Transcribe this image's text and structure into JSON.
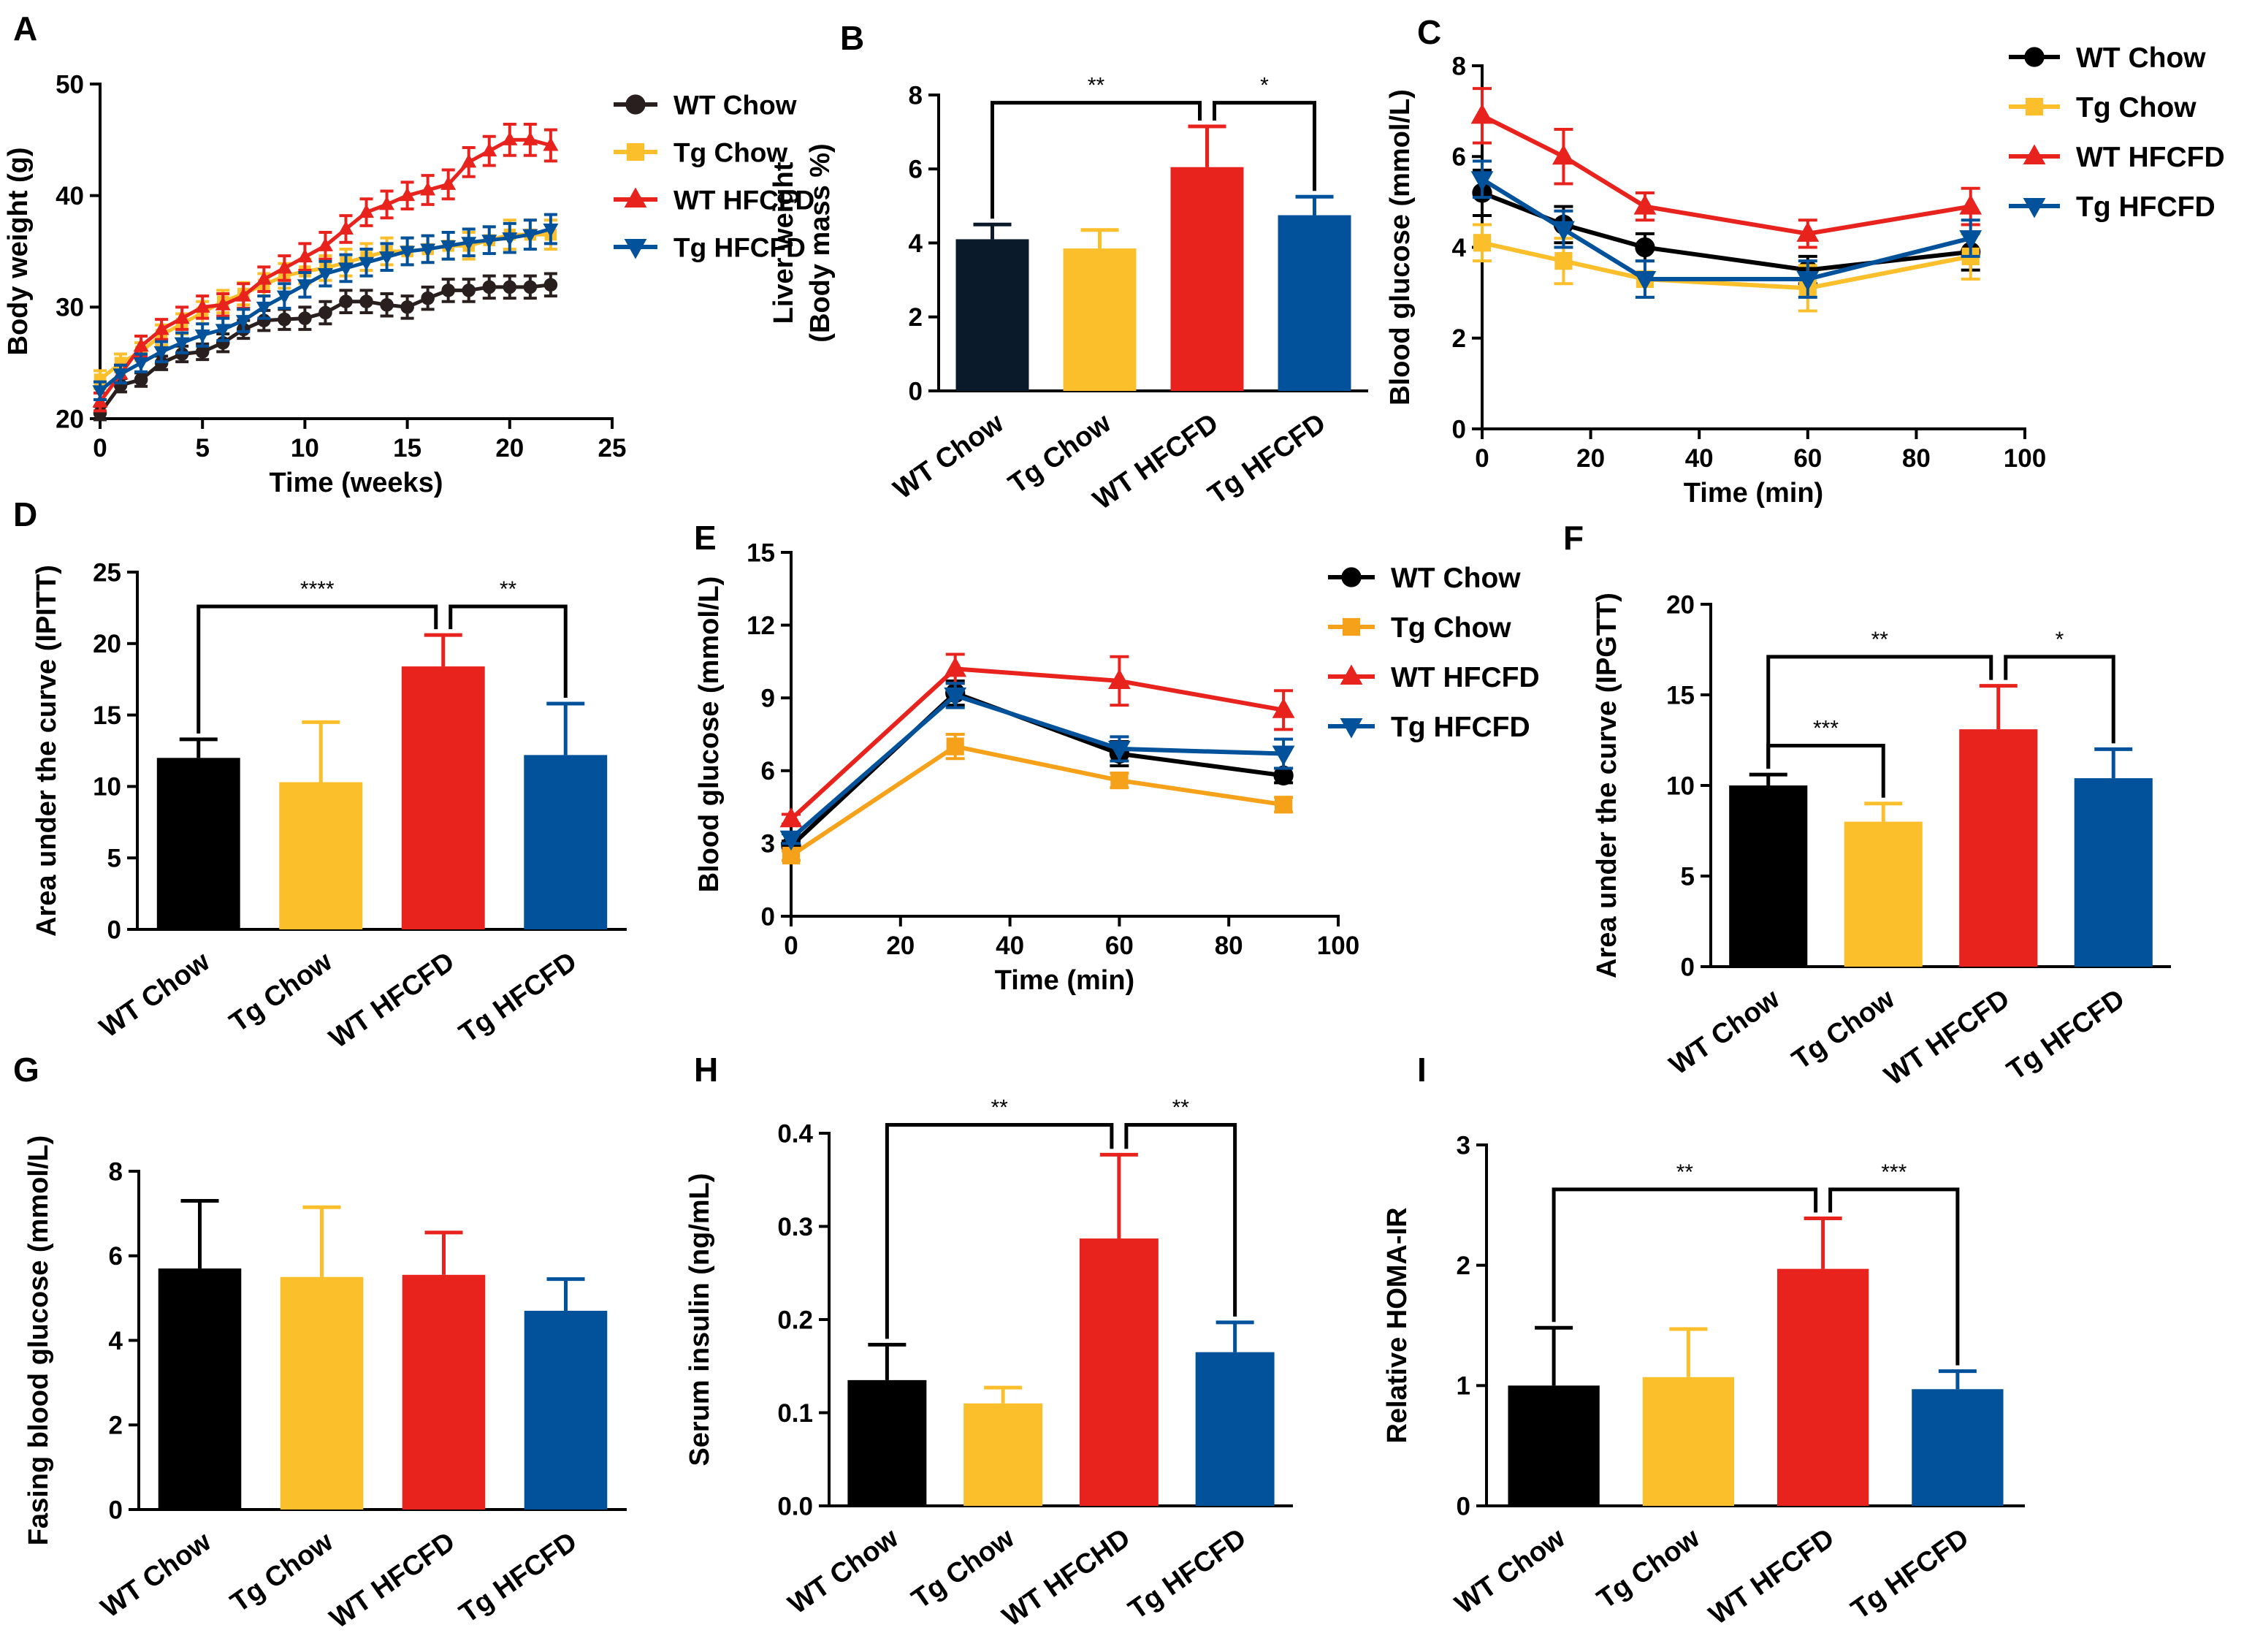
{
  "colors": {
    "wt_chow": "#000000",
    "wt_chow_bar": "#0b1a2a",
    "tg_chow": "#fbbf2c",
    "wt_hfcfd": "#e8231d",
    "tg_hfcfd": "#02519b"
  },
  "chart_data": [
    {
      "panel": "A",
      "type": "line",
      "xlabel": "Time (weeks)",
      "ylabel": "Body weight (g)",
      "xlim": [
        0,
        25
      ],
      "ylim": [
        20,
        50
      ],
      "xticks": [
        0,
        5,
        10,
        15,
        20,
        25
      ],
      "yticks": [
        20,
        30,
        40,
        50
      ],
      "xtick_labels": [
        "0",
        "5",
        "10",
        "15",
        "20",
        "25"
      ],
      "ytick_labels": [
        "20",
        "30",
        "40",
        "50"
      ],
      "x": [
        0,
        1,
        2,
        3,
        4,
        5,
        6,
        7,
        8,
        9,
        10,
        11,
        12,
        13,
        14,
        15,
        16,
        17,
        18,
        19,
        20,
        21,
        22
      ],
      "series": [
        {
          "name": "WT Chow",
          "color": "#2a1f1f",
          "marker": "circle",
          "values": [
            20.5,
            23.0,
            23.5,
            25.0,
            25.8,
            26.0,
            26.8,
            28.0,
            28.8,
            28.9,
            29.0,
            29.5,
            30.5,
            30.5,
            30.2,
            30.0,
            30.8,
            31.5,
            31.5,
            31.8,
            31.8,
            31.8,
            32.0
          ],
          "errors": [
            0.6,
            0.6,
            0.6,
            0.6,
            0.7,
            0.7,
            0.8,
            0.8,
            0.9,
            0.9,
            1.0,
            1.0,
            1.0,
            1.0,
            1.0,
            1.0,
            1.0,
            1.0,
            1.0,
            1.0,
            1.0,
            1.0,
            1.0
          ]
        },
        {
          "name": "Tg Chow",
          "color": "#fbbf2c",
          "marker": "square",
          "values": [
            23.5,
            25.0,
            26.0,
            27.5,
            28.5,
            29.5,
            30.5,
            31.2,
            32.0,
            32.8,
            33.2,
            33.5,
            34.0,
            34.5,
            35.0,
            35.0,
            35.2,
            35.5,
            35.5,
            36.0,
            36.5,
            36.5,
            36.5
          ],
          "errors": [
            0.8,
            0.8,
            0.8,
            0.9,
            0.9,
            1.0,
            1.0,
            1.0,
            1.0,
            1.1,
            1.1,
            1.1,
            1.2,
            1.2,
            1.2,
            1.2,
            1.2,
            1.2,
            1.2,
            1.2,
            1.3,
            1.3,
            1.3
          ]
        },
        {
          "name": "WT HFCFD",
          "color": "#e8231d",
          "marker": "triangle-up",
          "values": [
            21.5,
            24.0,
            26.5,
            28.0,
            29.0,
            30.0,
            30.2,
            31.0,
            32.5,
            33.5,
            34.5,
            35.5,
            37.0,
            38.5,
            39.2,
            40.0,
            40.5,
            41.0,
            43.0,
            44.0,
            45.0,
            45.0,
            44.5
          ],
          "errors": [
            0.8,
            0.8,
            0.9,
            0.9,
            1.0,
            1.0,
            1.0,
            1.1,
            1.1,
            1.1,
            1.2,
            1.2,
            1.2,
            1.2,
            1.2,
            1.2,
            1.3,
            1.3,
            1.3,
            1.3,
            1.4,
            1.4,
            1.4
          ]
        },
        {
          "name": "Tg HFCFD",
          "color": "#02519b",
          "marker": "triangle-down",
          "values": [
            22.5,
            24.0,
            25.0,
            26.0,
            26.8,
            27.5,
            28.0,
            28.8,
            30.0,
            31.0,
            32.0,
            33.0,
            33.5,
            34.0,
            34.5,
            35.0,
            35.2,
            35.5,
            35.8,
            36.0,
            36.2,
            36.5,
            37.0
          ],
          "errors": [
            0.8,
            0.8,
            0.8,
            0.9,
            0.9,
            1.0,
            1.0,
            1.0,
            1.0,
            1.1,
            1.1,
            1.1,
            1.2,
            1.2,
            1.2,
            1.2,
            1.2,
            1.2,
            1.2,
            1.2,
            1.3,
            1.3,
            1.3
          ]
        }
      ]
    },
    {
      "panel": "B",
      "type": "bar",
      "ylabel": [
        "Liver weight",
        "(Body mass %)"
      ],
      "ylim": [
        0,
        8
      ],
      "yticks": [
        0,
        2,
        4,
        6,
        8
      ],
      "ytick_labels": [
        "0",
        "2",
        "4",
        "6",
        "8"
      ],
      "categories": [
        "WT Chow",
        "Tg Chow",
        "WT HFCFD",
        "Tg HFCFD"
      ],
      "values": [
        4.1,
        3.85,
        6.05,
        4.75
      ],
      "errors": [
        0.4,
        0.5,
        1.1,
        0.5
      ],
      "bar_colors": [
        "#0b1a2a",
        "#fbbf2c",
        "#e8231d",
        "#02519b"
      ],
      "significance": [
        {
          "from": 0,
          "to": 2,
          "label": "**"
        },
        {
          "from": 2,
          "to": 3,
          "label": "*"
        }
      ]
    },
    {
      "panel": "C",
      "type": "line",
      "xlabel": "Time (min)",
      "ylabel": "Blood glucose (mmol/L)",
      "xlim": [
        0,
        100
      ],
      "ylim": [
        0,
        8
      ],
      "xticks": [
        0,
        20,
        40,
        60,
        80,
        100
      ],
      "yticks": [
        0,
        2,
        4,
        6,
        8
      ],
      "xtick_labels": [
        "0",
        "20",
        "40",
        "60",
        "80",
        "100"
      ],
      "ytick_labels": [
        "0",
        "2",
        "4",
        "6",
        "8"
      ],
      "x": [
        0,
        15,
        30,
        60,
        90
      ],
      "series": [
        {
          "name": "WT Chow",
          "color": "#000000",
          "marker": "circle",
          "values": [
            5.2,
            4.5,
            4.0,
            3.5,
            3.9
          ],
          "errors": [
            0.5,
            0.4,
            0.3,
            0.3,
            0.4
          ]
        },
        {
          "name": "Tg Chow",
          "color": "#fbbf2c",
          "marker": "square",
          "values": [
            4.1,
            3.7,
            3.3,
            3.1,
            3.8
          ],
          "errors": [
            0.4,
            0.5,
            0.4,
            0.5,
            0.5
          ]
        },
        {
          "name": "WT HFCFD",
          "color": "#e8231d",
          "marker": "triangle-up",
          "values": [
            6.9,
            6.0,
            4.9,
            4.3,
            4.9
          ],
          "errors": [
            0.6,
            0.6,
            0.3,
            0.3,
            0.4
          ]
        },
        {
          "name": "Tg HFCFD",
          "color": "#02519b",
          "marker": "triangle-down",
          "values": [
            5.5,
            4.4,
            3.3,
            3.3,
            4.2
          ],
          "errors": [
            0.4,
            0.4,
            0.4,
            0.4,
            0.4
          ]
        }
      ]
    },
    {
      "panel": "D",
      "type": "bar",
      "ylabel": "Area under the curve (IPITT)",
      "ylim": [
        0,
        25
      ],
      "yticks": [
        0,
        5,
        10,
        15,
        20,
        25
      ],
      "ytick_labels": [
        "0",
        "5",
        "10",
        "15",
        "20",
        "25"
      ],
      "categories": [
        "WT Chow",
        "Tg Chow",
        "WT HFCFD",
        "Tg HFCFD"
      ],
      "values": [
        12.0,
        10.3,
        18.4,
        12.2
      ],
      "errors": [
        1.3,
        4.2,
        2.2,
        3.6
      ],
      "bar_colors": [
        "#000000",
        "#fbbf2c",
        "#e8231d",
        "#02519b"
      ],
      "significance": [
        {
          "from": 0,
          "to": 2,
          "label": "****"
        },
        {
          "from": 2,
          "to": 3,
          "label": "**"
        }
      ]
    },
    {
      "panel": "E",
      "type": "line",
      "xlabel": "Time (min)",
      "ylabel": "Blood glucose (mmol/L)",
      "xlim": [
        0,
        100
      ],
      "ylim": [
        0,
        15
      ],
      "xticks": [
        0,
        20,
        40,
        60,
        80,
        100
      ],
      "yticks": [
        0,
        3,
        6,
        9,
        12,
        15
      ],
      "xtick_labels": [
        "0",
        "20",
        "40",
        "60",
        "80",
        "100"
      ],
      "ytick_labels": [
        "0",
        "3",
        "6",
        "9",
        "12",
        "15"
      ],
      "x": [
        0,
        30,
        60,
        90
      ],
      "series": [
        {
          "name": "WT Chow",
          "color": "#000000",
          "marker": "circle",
          "values": [
            2.9,
            9.2,
            6.7,
            5.8
          ],
          "errors": [
            0.2,
            0.5,
            0.5,
            0.3
          ]
        },
        {
          "name": "Tg Chow",
          "color": "#f5a21a",
          "marker": "square",
          "values": [
            2.5,
            7.0,
            5.6,
            4.6
          ],
          "errors": [
            0.2,
            0.5,
            0.3,
            0.3
          ]
        },
        {
          "name": "WT HFCFD",
          "color": "#e8231d",
          "marker": "triangle-up",
          "values": [
            4.0,
            10.2,
            9.7,
            8.5
          ],
          "errors": [
            0.2,
            0.6,
            1.0,
            0.8
          ]
        },
        {
          "name": "Tg HFCFD",
          "color": "#02519b",
          "marker": "triangle-down",
          "values": [
            3.2,
            9.1,
            6.9,
            6.7
          ],
          "errors": [
            0.2,
            0.5,
            0.5,
            0.6
          ]
        }
      ]
    },
    {
      "panel": "F",
      "type": "bar",
      "ylabel": "Area under the curve (IPGTT)",
      "ylim": [
        0,
        20
      ],
      "yticks": [
        0,
        5,
        10,
        15,
        20
      ],
      "ytick_labels": [
        "0",
        "5",
        "10",
        "15",
        "20"
      ],
      "categories": [
        "WT Chow",
        "Tg Chow",
        "WT HFCFD",
        "Tg HFCFD"
      ],
      "values": [
        10.0,
        8.0,
        13.1,
        10.4
      ],
      "errors": [
        0.6,
        1.0,
        2.4,
        1.6
      ],
      "bar_colors": [
        "#000000",
        "#fbbf2c",
        "#e8231d",
        "#02519b"
      ],
      "significance": [
        {
          "from": 0,
          "to": 2,
          "label": "**"
        },
        {
          "from": 0,
          "to": 1,
          "label": "***"
        },
        {
          "from": 2,
          "to": 3,
          "label": "*"
        }
      ]
    },
    {
      "panel": "G",
      "type": "bar",
      "ylabel": "Fasing blood glucose (mmol/L)",
      "ylim": [
        0,
        8
      ],
      "yticks": [
        0,
        2,
        4,
        6,
        8
      ],
      "ytick_labels": [
        "0",
        "2",
        "4",
        "6",
        "8"
      ],
      "categories": [
        "WT Chow",
        "Tg Chow",
        "WT HFCFD",
        "Tg HFCFD"
      ],
      "values": [
        5.7,
        5.5,
        5.55,
        4.7
      ],
      "errors": [
        1.6,
        1.65,
        1.0,
        0.75
      ],
      "bar_colors": [
        "#000000",
        "#fbbf2c",
        "#e8231d",
        "#02519b"
      ],
      "significance": []
    },
    {
      "panel": "H",
      "type": "bar",
      "ylabel": "Serum insulin (ng/mL)",
      "ylim": [
        0,
        0.4
      ],
      "yticks": [
        0,
        0.1,
        0.2,
        0.3,
        0.4
      ],
      "ytick_labels": [
        "0.0",
        "0.1",
        "0.2",
        "0.3",
        "0.4"
      ],
      "categories": [
        "WT Chow",
        "Tg Chow",
        "WT HFCHD",
        "Tg HFCFD"
      ],
      "values": [
        0.135,
        0.11,
        0.287,
        0.165
      ],
      "errors": [
        0.038,
        0.017,
        0.09,
        0.032
      ],
      "bar_colors": [
        "#000000",
        "#fbbf2c",
        "#e8231d",
        "#02519b"
      ],
      "significance": [
        {
          "from": 0,
          "to": 2,
          "label": "**"
        },
        {
          "from": 2,
          "to": 3,
          "label": "**"
        }
      ]
    },
    {
      "panel": "I",
      "type": "bar",
      "ylabel": "Relative HOMA-IR",
      "ylim": [
        0,
        3
      ],
      "yticks": [
        0,
        1,
        2,
        3
      ],
      "ytick_labels": [
        "0",
        "1",
        "2",
        "3"
      ],
      "categories": [
        "WT Chow",
        "Tg Chow",
        "WT HFCFD",
        "Tg HFCFD"
      ],
      "values": [
        1.0,
        1.07,
        1.97,
        0.97
      ],
      "errors": [
        0.48,
        0.4,
        0.42,
        0.15
      ],
      "bar_colors": [
        "#000000",
        "#fbbf2c",
        "#e8231d",
        "#02519b"
      ],
      "significance": [
        {
          "from": 0,
          "to": 2,
          "label": "**"
        },
        {
          "from": 2,
          "to": 3,
          "label": "***"
        }
      ]
    }
  ]
}
